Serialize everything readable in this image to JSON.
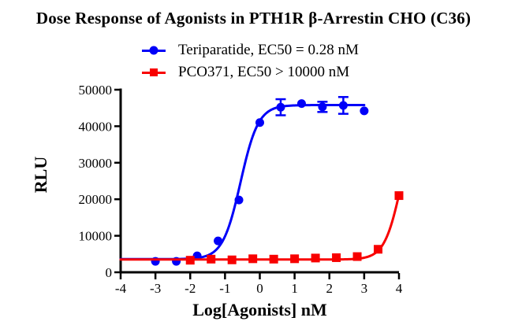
{
  "title": "Dose Response of Agonists in PTH1R β-Arrestin CHO (C36)",
  "legend": [
    {
      "label": "Teriparatide, EC50 = 0.28 nM",
      "color": "#0000F8",
      "marker": "circle"
    },
    {
      "label": "PCO371, EC50 > 10000 nM",
      "color": "#F80000",
      "marker": "square"
    }
  ],
  "axis_color": "#000000",
  "chart_data": {
    "type": "scatter",
    "subtype": "dose-response-curves",
    "title": "Dose Response of Agonists in PTH1R β-Arrestin CHO (C36)",
    "xlabel": "Log[Agonists] nM",
    "ylabel": "RLU",
    "xlim": [
      -4,
      4
    ],
    "ylim": [
      0,
      50000
    ],
    "x_ticks": [
      -4,
      -3,
      -2,
      -1,
      0,
      1,
      2,
      3,
      4
    ],
    "y_ticks": [
      0,
      10000,
      20000,
      30000,
      40000,
      50000
    ],
    "grid": false,
    "legend_position": "top-center",
    "series": [
      {
        "name": "Teriparatide, EC50 = 0.28 nM",
        "color": "#0000F8",
        "marker": "circle",
        "x": [
          -3.0,
          -2.4,
          -1.8,
          -1.2,
          -0.6,
          0.0,
          0.6,
          1.2,
          1.8,
          2.4,
          3.0
        ],
        "y": [
          3000,
          3000,
          4500,
          8600,
          19800,
          41000,
          45200,
          46200,
          45300,
          45700,
          44200
        ],
        "yerr": [
          0,
          0,
          0,
          0,
          0,
          0,
          2200,
          0,
          1400,
          2300,
          0
        ],
        "fit": {
          "model": "sigmoid",
          "bottom": 3600,
          "top": 45800,
          "logEC50": -0.553,
          "hill": 1.7,
          "range": [
            -4,
            3.0
          ]
        }
      },
      {
        "name": "PCO371, EC50 > 10000 nM",
        "color": "#F80000",
        "marker": "square",
        "x": [
          -2.0,
          -1.4,
          -0.8,
          -0.2,
          0.4,
          1.0,
          1.6,
          2.2,
          2.8,
          3.4,
          4.0
        ],
        "y": [
          3300,
          3600,
          3400,
          3700,
          3600,
          3700,
          3900,
          4000,
          4300,
          6300,
          21000
        ],
        "yerr": [
          0,
          0,
          0,
          0,
          0,
          0,
          0,
          0,
          0,
          0,
          0
        ],
        "fit": {
          "model": "sigmoid",
          "bottom": 3500,
          "top": 45000,
          "logEC50": 4.07,
          "hill": 1.8,
          "range": [
            -4,
            4.0
          ]
        }
      }
    ]
  }
}
